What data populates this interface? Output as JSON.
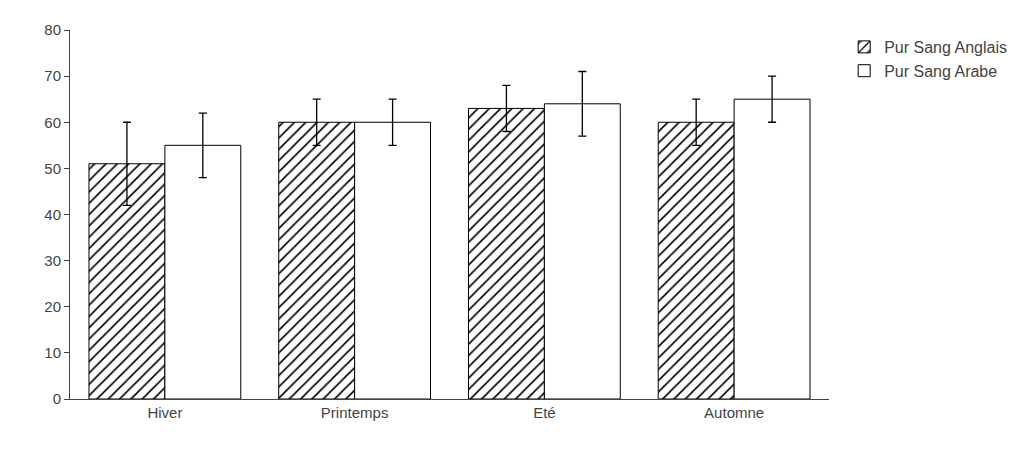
{
  "chart_data": {
    "type": "bar",
    "categories": [
      "Hiver",
      "Printemps",
      "Eté",
      "Automne"
    ],
    "series": [
      {
        "name": "Pur Sang Anglais",
        "color": "#c8c8c8",
        "values": [
          51,
          60,
          63,
          60
        ],
        "errors": [
          9,
          5,
          5,
          5
        ]
      },
      {
        "name": "Pur Sang Arabe",
        "color": "#ffffff",
        "values": [
          55,
          60,
          64,
          65
        ],
        "errors": [
          7,
          5,
          7,
          5
        ]
      }
    ],
    "ylim": [
      0,
      80
    ],
    "yticks": [
      0,
      10,
      20,
      30,
      40,
      50,
      60,
      70,
      80
    ],
    "grid": false,
    "legend": "right"
  }
}
